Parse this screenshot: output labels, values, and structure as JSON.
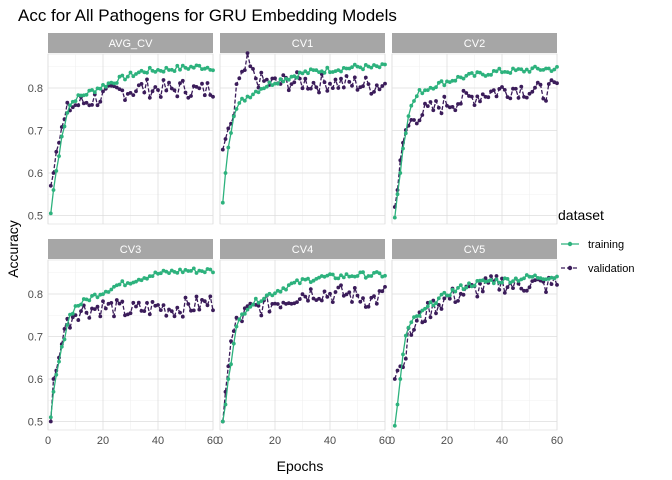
{
  "chart_data": {
    "type": "line",
    "title": "Acc for All Pathogens for GRU Embedding Models",
    "xlabel": "Epochs",
    "ylabel": "Accuracy",
    "xlim": [
      0,
      60
    ],
    "ylim": [
      0.48,
      0.88
    ],
    "x_ticks": [
      0,
      20,
      40,
      60
    ],
    "y_ticks": [
      0.5,
      0.6,
      0.7,
      0.8
    ],
    "y_tick_labels": [
      "0.5",
      "0.6",
      "0.7",
      "0.8"
    ],
    "x_tick_labels": [
      "0",
      "20",
      "40",
      "60"
    ],
    "grid": true,
    "legend": {
      "title": "dataset",
      "position": "right",
      "entries": [
        {
          "label": "training",
          "color": "#2db27d",
          "dash": "solid"
        },
        {
          "label": "validation",
          "color": "#3b1c5a",
          "dash": "dashed"
        }
      ]
    },
    "panels": [
      {
        "label": "AVG_CV",
        "training_anchors": [
          [
            1,
            0.505
          ],
          [
            2,
            0.56
          ],
          [
            3,
            0.605
          ],
          [
            4,
            0.64
          ],
          [
            5,
            0.685
          ],
          [
            6,
            0.715
          ],
          [
            7,
            0.745
          ],
          [
            8,
            0.76
          ],
          [
            10,
            0.775
          ],
          [
            15,
            0.79
          ],
          [
            20,
            0.805
          ],
          [
            25,
            0.818
          ],
          [
            30,
            0.83
          ],
          [
            35,
            0.84
          ],
          [
            40,
            0.842
          ],
          [
            45,
            0.845
          ],
          [
            50,
            0.848
          ],
          [
            55,
            0.85
          ],
          [
            60,
            0.848
          ]
        ],
        "validation_anchors": [
          [
            1,
            0.57
          ],
          [
            2,
            0.6
          ],
          [
            3,
            0.65
          ],
          [
            4,
            0.675
          ],
          [
            5,
            0.7
          ],
          [
            6,
            0.72
          ],
          [
            7,
            0.745
          ],
          [
            8,
            0.755
          ],
          [
            10,
            0.76
          ],
          [
            15,
            0.77
          ],
          [
            20,
            0.78
          ],
          [
            25,
            0.79
          ],
          [
            30,
            0.795
          ],
          [
            35,
            0.8
          ],
          [
            40,
            0.798
          ],
          [
            45,
            0.795
          ],
          [
            50,
            0.8
          ],
          [
            55,
            0.792
          ],
          [
            60,
            0.8
          ]
        ]
      },
      {
        "label": "CV1",
        "training_anchors": [
          [
            1,
            0.53
          ],
          [
            2,
            0.6
          ],
          [
            3,
            0.66
          ],
          [
            4,
            0.7
          ],
          [
            5,
            0.74
          ],
          [
            8,
            0.77
          ],
          [
            10,
            0.78
          ],
          [
            15,
            0.8
          ],
          [
            20,
            0.815
          ],
          [
            25,
            0.825
          ],
          [
            30,
            0.835
          ],
          [
            35,
            0.84
          ],
          [
            40,
            0.843
          ],
          [
            45,
            0.846
          ],
          [
            50,
            0.85
          ],
          [
            55,
            0.848
          ],
          [
            60,
            0.85
          ]
        ],
        "validation_anchors": [
          [
            1,
            0.655
          ],
          [
            2,
            0.68
          ],
          [
            3,
            0.705
          ],
          [
            4,
            0.72
          ],
          [
            5,
            0.735
          ],
          [
            6,
            0.8
          ],
          [
            8,
            0.82
          ],
          [
            10,
            0.86
          ],
          [
            12,
            0.83
          ],
          [
            15,
            0.815
          ],
          [
            20,
            0.81
          ],
          [
            25,
            0.815
          ],
          [
            30,
            0.815
          ],
          [
            35,
            0.81
          ],
          [
            40,
            0.815
          ],
          [
            45,
            0.81
          ],
          [
            50,
            0.81
          ],
          [
            55,
            0.805
          ],
          [
            60,
            0.81
          ]
        ]
      },
      {
        "label": "CV2",
        "training_anchors": [
          [
            1,
            0.495
          ],
          [
            2,
            0.55
          ],
          [
            3,
            0.6
          ],
          [
            4,
            0.66
          ],
          [
            5,
            0.7
          ],
          [
            6,
            0.74
          ],
          [
            8,
            0.77
          ],
          [
            10,
            0.79
          ],
          [
            15,
            0.805
          ],
          [
            20,
            0.815
          ],
          [
            25,
            0.825
          ],
          [
            30,
            0.83
          ],
          [
            35,
            0.835
          ],
          [
            40,
            0.84
          ],
          [
            45,
            0.84
          ],
          [
            50,
            0.843
          ],
          [
            55,
            0.845
          ],
          [
            60,
            0.845
          ]
        ],
        "validation_anchors": [
          [
            1,
            0.52
          ],
          [
            2,
            0.56
          ],
          [
            3,
            0.63
          ],
          [
            4,
            0.66
          ],
          [
            5,
            0.7
          ],
          [
            6,
            0.71
          ],
          [
            8,
            0.73
          ],
          [
            10,
            0.74
          ],
          [
            15,
            0.75
          ],
          [
            20,
            0.765
          ],
          [
            25,
            0.77
          ],
          [
            30,
            0.78
          ],
          [
            35,
            0.79
          ],
          [
            40,
            0.795
          ],
          [
            45,
            0.8
          ],
          [
            50,
            0.795
          ],
          [
            55,
            0.79
          ],
          [
            60,
            0.8
          ]
        ]
      },
      {
        "label": "CV3",
        "training_anchors": [
          [
            1,
            0.51
          ],
          [
            2,
            0.57
          ],
          [
            3,
            0.61
          ],
          [
            4,
            0.64
          ],
          [
            5,
            0.67
          ],
          [
            6,
            0.7
          ],
          [
            7,
            0.73
          ],
          [
            8,
            0.75
          ],
          [
            10,
            0.77
          ],
          [
            15,
            0.79
          ],
          [
            20,
            0.805
          ],
          [
            25,
            0.82
          ],
          [
            30,
            0.83
          ],
          [
            35,
            0.84
          ],
          [
            40,
            0.848
          ],
          [
            45,
            0.852
          ],
          [
            50,
            0.855
          ],
          [
            55,
            0.855
          ],
          [
            60,
            0.855
          ]
        ],
        "validation_anchors": [
          [
            1,
            0.5
          ],
          [
            2,
            0.6
          ],
          [
            3,
            0.62
          ],
          [
            4,
            0.64
          ],
          [
            5,
            0.7
          ],
          [
            6,
            0.72
          ],
          [
            8,
            0.74
          ],
          [
            10,
            0.76
          ],
          [
            15,
            0.765
          ],
          [
            20,
            0.77
          ],
          [
            25,
            0.765
          ],
          [
            30,
            0.76
          ],
          [
            35,
            0.765
          ],
          [
            40,
            0.77
          ],
          [
            45,
            0.765
          ],
          [
            50,
            0.77
          ],
          [
            55,
            0.775
          ],
          [
            60,
            0.78
          ]
        ]
      },
      {
        "label": "CV4",
        "training_anchors": [
          [
            1,
            0.5
          ],
          [
            2,
            0.54
          ],
          [
            3,
            0.6
          ],
          [
            4,
            0.64
          ],
          [
            5,
            0.69
          ],
          [
            6,
            0.72
          ],
          [
            8,
            0.75
          ],
          [
            10,
            0.77
          ],
          [
            15,
            0.79
          ],
          [
            20,
            0.805
          ],
          [
            25,
            0.82
          ],
          [
            30,
            0.83
          ],
          [
            35,
            0.838
          ],
          [
            40,
            0.84
          ],
          [
            45,
            0.842
          ],
          [
            50,
            0.845
          ],
          [
            55,
            0.845
          ],
          [
            60,
            0.845
          ]
        ],
        "validation_anchors": [
          [
            1,
            0.5
          ],
          [
            2,
            0.57
          ],
          [
            3,
            0.63
          ],
          [
            4,
            0.68
          ],
          [
            5,
            0.71
          ],
          [
            6,
            0.73
          ],
          [
            8,
            0.745
          ],
          [
            10,
            0.76
          ],
          [
            15,
            0.77
          ],
          [
            20,
            0.78
          ],
          [
            25,
            0.79
          ],
          [
            30,
            0.8
          ],
          [
            35,
            0.805
          ],
          [
            40,
            0.8
          ],
          [
            45,
            0.8
          ],
          [
            50,
            0.795
          ],
          [
            55,
            0.785
          ],
          [
            60,
            0.8
          ]
        ]
      },
      {
        "label": "CV5",
        "training_anchors": [
          [
            1,
            0.49
          ],
          [
            2,
            0.54
          ],
          [
            3,
            0.6
          ],
          [
            4,
            0.66
          ],
          [
            5,
            0.7
          ],
          [
            6,
            0.72
          ],
          [
            8,
            0.74
          ],
          [
            10,
            0.75
          ],
          [
            15,
            0.78
          ],
          [
            20,
            0.8
          ],
          [
            25,
            0.815
          ],
          [
            30,
            0.825
          ],
          [
            35,
            0.83
          ],
          [
            40,
            0.832
          ],
          [
            45,
            0.835
          ],
          [
            50,
            0.84
          ],
          [
            55,
            0.84
          ],
          [
            60,
            0.84
          ]
        ],
        "validation_anchors": [
          [
            1,
            0.6
          ],
          [
            2,
            0.62
          ],
          [
            3,
            0.63
          ],
          [
            4,
            0.65
          ],
          [
            5,
            0.66
          ],
          [
            6,
            0.7
          ],
          [
            8,
            0.72
          ],
          [
            10,
            0.74
          ],
          [
            15,
            0.77
          ],
          [
            20,
            0.79
          ],
          [
            25,
            0.8
          ],
          [
            30,
            0.81
          ],
          [
            35,
            0.82
          ],
          [
            40,
            0.825
          ],
          [
            45,
            0.82
          ],
          [
            50,
            0.825
          ],
          [
            55,
            0.82
          ],
          [
            60,
            0.825
          ]
        ]
      }
    ]
  }
}
